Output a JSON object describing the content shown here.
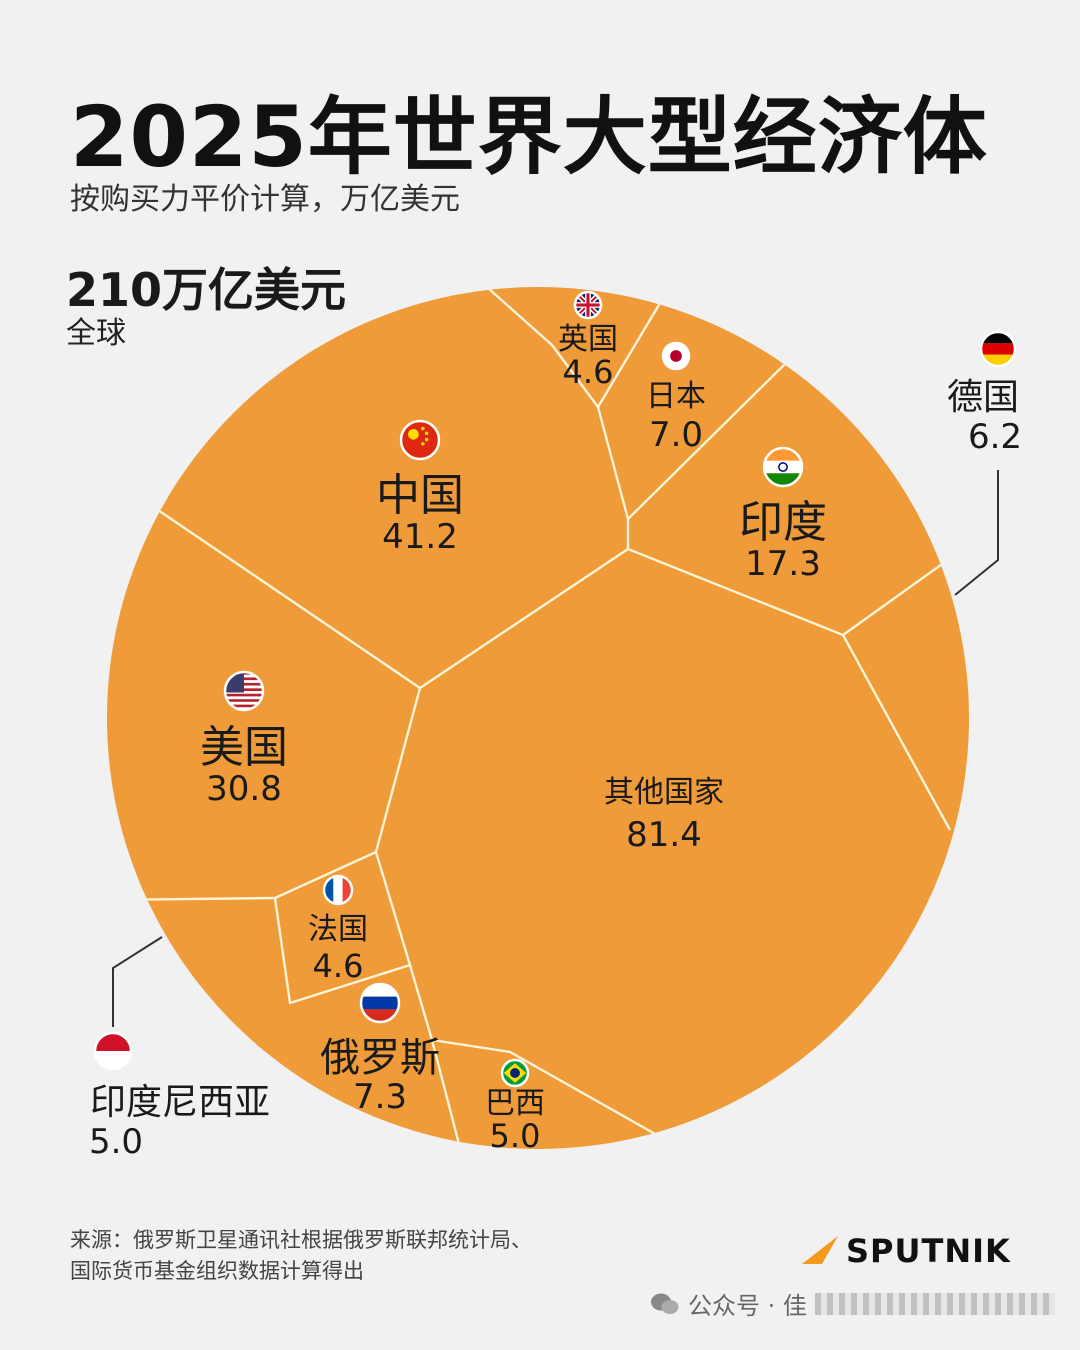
{
  "header": {
    "title": "2025年世界大型经济体",
    "subtitle": "按购买力平价计算，万亿美元"
  },
  "total": {
    "value": "210万亿美元",
    "label": "全球"
  },
  "colors": {
    "cell_fill": "#ef9b3a",
    "cell_border": "#fff4d8",
    "background": "#f1f1f1",
    "brand_accent": "#f39a1e"
  },
  "chart_data": {
    "type": "voronoi-treemap",
    "unit": "万亿美元",
    "total": 210,
    "items": [
      {
        "name": "中国",
        "value": 41.2,
        "flag": "china-flag-icon"
      },
      {
        "name": "美国",
        "value": 30.8,
        "flag": "usa-flag-icon"
      },
      {
        "name": "印度",
        "value": 17.3,
        "flag": "india-flag-icon"
      },
      {
        "name": "俄罗斯",
        "value": 7.3,
        "flag": "russia-flag-icon"
      },
      {
        "name": "日本",
        "value": 7.0,
        "flag": "japan-flag-icon"
      },
      {
        "name": "德国",
        "value": 6.2,
        "flag": "germany-flag-icon"
      },
      {
        "name": "印度尼西亚",
        "value": 5.0,
        "flag": "indonesia-flag-icon"
      },
      {
        "name": "巴西",
        "value": 5.0,
        "flag": "brazil-flag-icon"
      },
      {
        "name": "英国",
        "value": 4.6,
        "flag": "uk-flag-icon"
      },
      {
        "name": "法国",
        "value": 4.6,
        "flag": "france-flag-icon"
      },
      {
        "name": "其他国家",
        "value": 81.4,
        "flag": ""
      }
    ]
  },
  "footer": {
    "source_line1": "来源：俄罗斯卫星通讯社根据俄罗斯联邦统计局、",
    "source_line2": "国际货币基金组织数据计算得出",
    "brand": "SPUTNIK",
    "watermark": "公众号 · 佳"
  }
}
